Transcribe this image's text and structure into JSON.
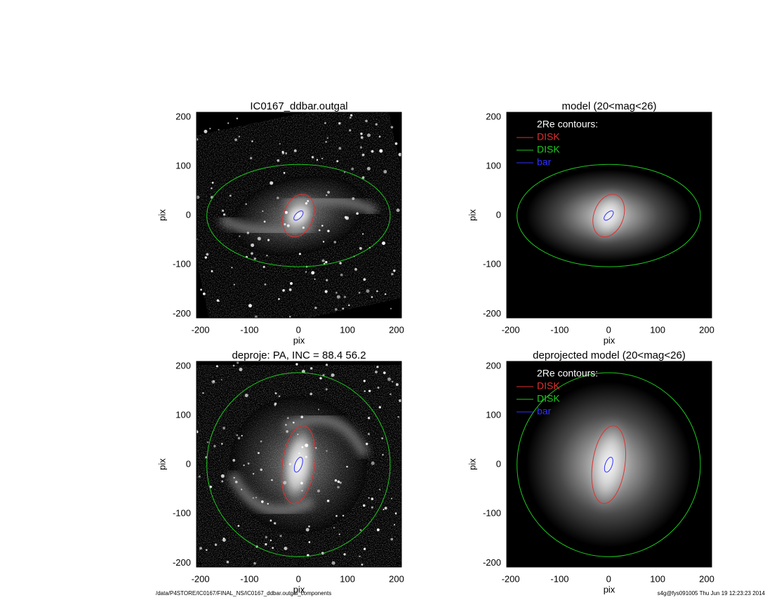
{
  "chart_data": [
    {
      "type": "image",
      "title": "IC0167_ddbar.outgal",
      "xlabel": "pix",
      "ylabel": "pix",
      "xlim": [
        -208,
        210
      ],
      "ylim": [
        -208,
        210
      ],
      "xticks": [
        -200,
        -100,
        0,
        100,
        200
      ],
      "yticks": [
        -200,
        -100,
        0,
        100,
        200
      ],
      "contours": [
        {
          "color": "#e03030",
          "center": [
            0,
            0
          ],
          "semi_axes": [
            45,
            30
          ],
          "angle": 70
        },
        {
          "color": "#1ec81e",
          "center": [
            0,
            0
          ],
          "semi_axes": [
            187,
            104
          ],
          "angle": 0
        },
        {
          "color": "#3030ff",
          "center": [
            0,
            0
          ],
          "semi_axes": [
            12,
            6
          ],
          "angle": 45
        }
      ]
    },
    {
      "type": "image",
      "title": "model (20<mag<26)",
      "xlabel": "pix",
      "ylabel": "pix",
      "xlim": [
        -208,
        210
      ],
      "ylim": [
        -208,
        210
      ],
      "xticks": [
        -200,
        -100,
        0,
        100,
        200
      ],
      "yticks": [
        -200,
        -100,
        0,
        100,
        200
      ],
      "legend_title": "2Re contours:",
      "contours": [
        {
          "name": "DISK",
          "color": "#e03030",
          "center": [
            0,
            0
          ],
          "semi_axes": [
            45,
            30
          ],
          "angle": 70
        },
        {
          "name": "DISK",
          "color": "#1ec81e",
          "center": [
            0,
            0
          ],
          "semi_axes": [
            187,
            104
          ],
          "angle": 0
        },
        {
          "name": "bar",
          "color": "#3030ff",
          "center": [
            0,
            0
          ],
          "semi_axes": [
            12,
            6
          ],
          "angle": 45
        }
      ]
    },
    {
      "type": "image",
      "title": "deproje: PA, INC =  88.4    56.2",
      "xlabel": "pix",
      "ylabel": "pix",
      "xlim": [
        -208,
        210
      ],
      "ylim": [
        -208,
        210
      ],
      "xticks": [
        -200,
        -100,
        0,
        100,
        200
      ],
      "yticks": [
        -200,
        -100,
        0,
        100,
        200
      ],
      "contours": [
        {
          "color": "#e03030",
          "center": [
            0,
            0
          ],
          "semi_axes": [
            80,
            33
          ],
          "angle": 82
        },
        {
          "color": "#1ec81e",
          "center": [
            0,
            0
          ],
          "semi_axes": [
            187,
            187
          ],
          "angle": 0
        },
        {
          "color": "#3030ff",
          "center": [
            0,
            0
          ],
          "semi_axes": [
            16,
            7
          ],
          "angle": 70
        }
      ]
    },
    {
      "type": "image",
      "title": "deprojected model (20<mag<26)",
      "xlabel": "pix",
      "ylabel": "pix",
      "xlim": [
        -208,
        210
      ],
      "ylim": [
        -208,
        210
      ],
      "xticks": [
        -200,
        -100,
        0,
        100,
        200
      ],
      "yticks": [
        -200,
        -100,
        0,
        100,
        200
      ],
      "legend_title": "2Re contours:",
      "contours": [
        {
          "name": "DISK",
          "color": "#e03030",
          "center": [
            0,
            0
          ],
          "semi_axes": [
            80,
            33
          ],
          "angle": 82
        },
        {
          "name": "DISK",
          "color": "#1ec81e",
          "center": [
            0,
            0
          ],
          "semi_axes": [
            187,
            187
          ],
          "angle": 0
        },
        {
          "name": "bar",
          "color": "#3030ff",
          "center": [
            0,
            0
          ],
          "semi_axes": [
            16,
            7
          ],
          "angle": 70
        }
      ]
    }
  ],
  "footer": {
    "left": "/data/P4STORE/IC0167/FINAL_NS/IC0167_ddbar.outgal_components",
    "right": "s4g@fys091005  Thu Jun 19 12:23:23 2014"
  }
}
